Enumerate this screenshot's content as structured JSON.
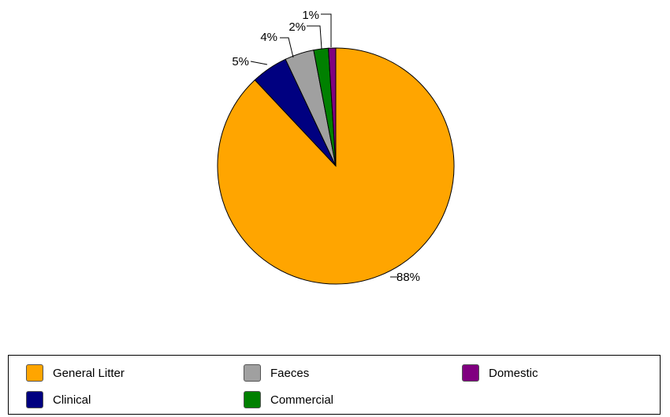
{
  "chart_data": {
    "type": "pie",
    "title": "",
    "slices": [
      {
        "label": "General Litter",
        "value": 88,
        "display": "88%",
        "color": "#FFA500"
      },
      {
        "label": "Clinical",
        "value": 5,
        "display": "5%",
        "color": "#000080"
      },
      {
        "label": "Faeces",
        "value": 4,
        "display": "4%",
        "color": "#A0A0A0"
      },
      {
        "label": "Commercial",
        "value": 2,
        "display": "2%",
        "color": "#008000"
      },
      {
        "label": "Domestic",
        "value": 1,
        "display": "1%",
        "color": "#800080"
      }
    ],
    "legend_position": "bottom",
    "legend": [
      {
        "label": "General Litter",
        "color": "#FFA500"
      },
      {
        "label": "Faeces",
        "color": "#A0A0A0"
      },
      {
        "label": "Domestic",
        "color": "#800080"
      },
      {
        "label": "Clinical",
        "color": "#000080"
      },
      {
        "label": "Commercial",
        "color": "#008000"
      }
    ]
  }
}
